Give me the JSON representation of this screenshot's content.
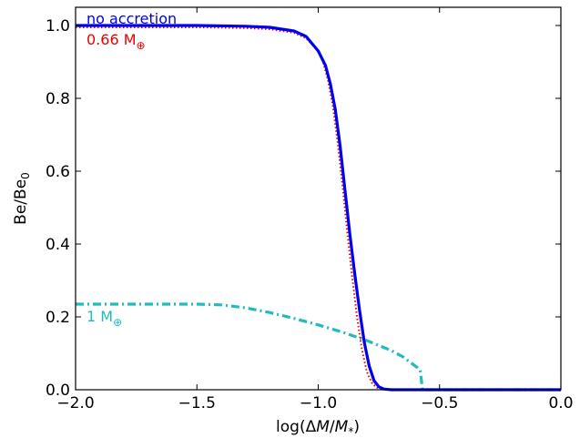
{
  "chart_data": {
    "type": "line",
    "xlabel": "log(ΔM/M*)",
    "ylabel": "Be/Be0",
    "xlim": [
      -2.0,
      0.0
    ],
    "ylim": [
      0.0,
      1.05
    ],
    "grid": false,
    "x_ticks": [
      {
        "value": -2.0,
        "label": "−2.0"
      },
      {
        "value": -1.5,
        "label": "−1.5"
      },
      {
        "value": -1.0,
        "label": "−1.0"
      },
      {
        "value": -0.5,
        "label": "−0.5"
      },
      {
        "value": 0.0,
        "label": "0.0"
      }
    ],
    "y_ticks": [
      {
        "value": 0.0,
        "label": "0.0"
      },
      {
        "value": 0.2,
        "label": "0.2"
      },
      {
        "value": 0.4,
        "label": "0.4"
      },
      {
        "value": 0.6,
        "label": "0.6"
      },
      {
        "value": 0.8,
        "label": "0.8"
      },
      {
        "value": 1.0,
        "label": "1.0"
      }
    ],
    "series": [
      {
        "name": "no accretion",
        "color": "#0000ee",
        "style": "solid",
        "x": [
          -2.0,
          -1.5,
          -1.3,
          -1.2,
          -1.1,
          -1.05,
          -1.0,
          -0.97,
          -0.95,
          -0.93,
          -0.91,
          -0.89,
          -0.87,
          -0.85,
          -0.83,
          -0.81,
          -0.79,
          -0.77,
          -0.75,
          -0.73,
          -0.7,
          -0.6,
          -0.4,
          0.0
        ],
        "y": [
          1.0,
          1.0,
          0.998,
          0.995,
          0.985,
          0.97,
          0.93,
          0.89,
          0.84,
          0.77,
          0.67,
          0.55,
          0.43,
          0.32,
          0.22,
          0.13,
          0.065,
          0.025,
          0.008,
          0.002,
          0.0,
          0.0,
          0.0,
          0.0
        ]
      },
      {
        "name": "0.66 M⊕",
        "color": "#ee0000",
        "style": "dotted",
        "x": [
          -2.0,
          -1.5,
          -1.3,
          -1.2,
          -1.1,
          -1.05,
          -1.0,
          -0.98,
          -0.96,
          -0.94,
          -0.92,
          -0.9,
          -0.88,
          -0.86,
          -0.84,
          -0.82,
          -0.8,
          -0.78,
          -0.76,
          -0.74,
          -0.7,
          -0.6,
          -0.4,
          0.0
        ],
        "y": [
          0.995,
          0.995,
          0.993,
          0.99,
          0.98,
          0.965,
          0.93,
          0.9,
          0.85,
          0.78,
          0.68,
          0.56,
          0.43,
          0.31,
          0.2,
          0.11,
          0.05,
          0.02,
          0.006,
          0.0015,
          0.0,
          0.0,
          0.0,
          0.0
        ]
      },
      {
        "name": "1 M⊕",
        "color": "#22bbbb",
        "style": "dashdot",
        "x": [
          -2.0,
          -1.8,
          -1.6,
          -1.5,
          -1.4,
          -1.3,
          -1.2,
          -1.1,
          -1.0,
          -0.9,
          -0.8,
          -0.7,
          -0.65,
          -0.6,
          -0.59,
          -0.58,
          -0.57,
          -0.55,
          -0.5,
          -0.4,
          -0.2,
          0.0
        ],
        "y": [
          0.235,
          0.235,
          0.235,
          0.235,
          0.233,
          0.225,
          0.212,
          0.196,
          0.178,
          0.158,
          0.135,
          0.108,
          0.09,
          0.065,
          0.06,
          0.055,
          0.0,
          0.0,
          0.0,
          0.0,
          0.0,
          0.0
        ]
      }
    ],
    "annotations": [
      {
        "text": "no accretion",
        "color": "#0000ee"
      },
      {
        "text": "0.66 M",
        "sub": "⊕",
        "color": "#ee0000"
      },
      {
        "text": "1 M",
        "sub": "⊕",
        "color": "#22bbbb"
      }
    ]
  }
}
